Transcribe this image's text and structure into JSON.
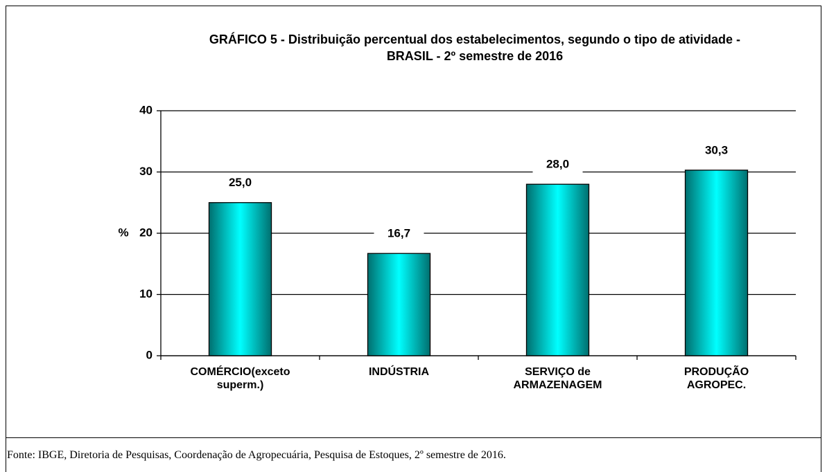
{
  "chart_data": {
    "type": "bar",
    "title": "GRÁFICO 5 - Distribuição percentual dos estabelecimentos, segundo o tipo de atividade - BRASIL - 2º semestre de 2016",
    "y_label": "%",
    "categories": [
      "COMÉRCIO(exceto superm.)",
      "INDÚSTRIA",
      "SERVIÇO de ARMAZENAGEM",
      "PRODUÇÃO AGROPEC."
    ],
    "values": [
      25.0,
      16.7,
      28.0,
      30.3
    ],
    "value_labels": [
      "25,0",
      "16,7",
      "28,0",
      "30,3"
    ],
    "color": "#00ffff",
    "ylim": [
      0,
      40
    ],
    "yticks": [
      0,
      10,
      20,
      30,
      40
    ],
    "grid": true,
    "source": "Fonte: IBGE, Diretoria de Pesquisas, Coordenação de Agropecuária, Pesquisa de Estoques, 2º semestre de 2016."
  }
}
